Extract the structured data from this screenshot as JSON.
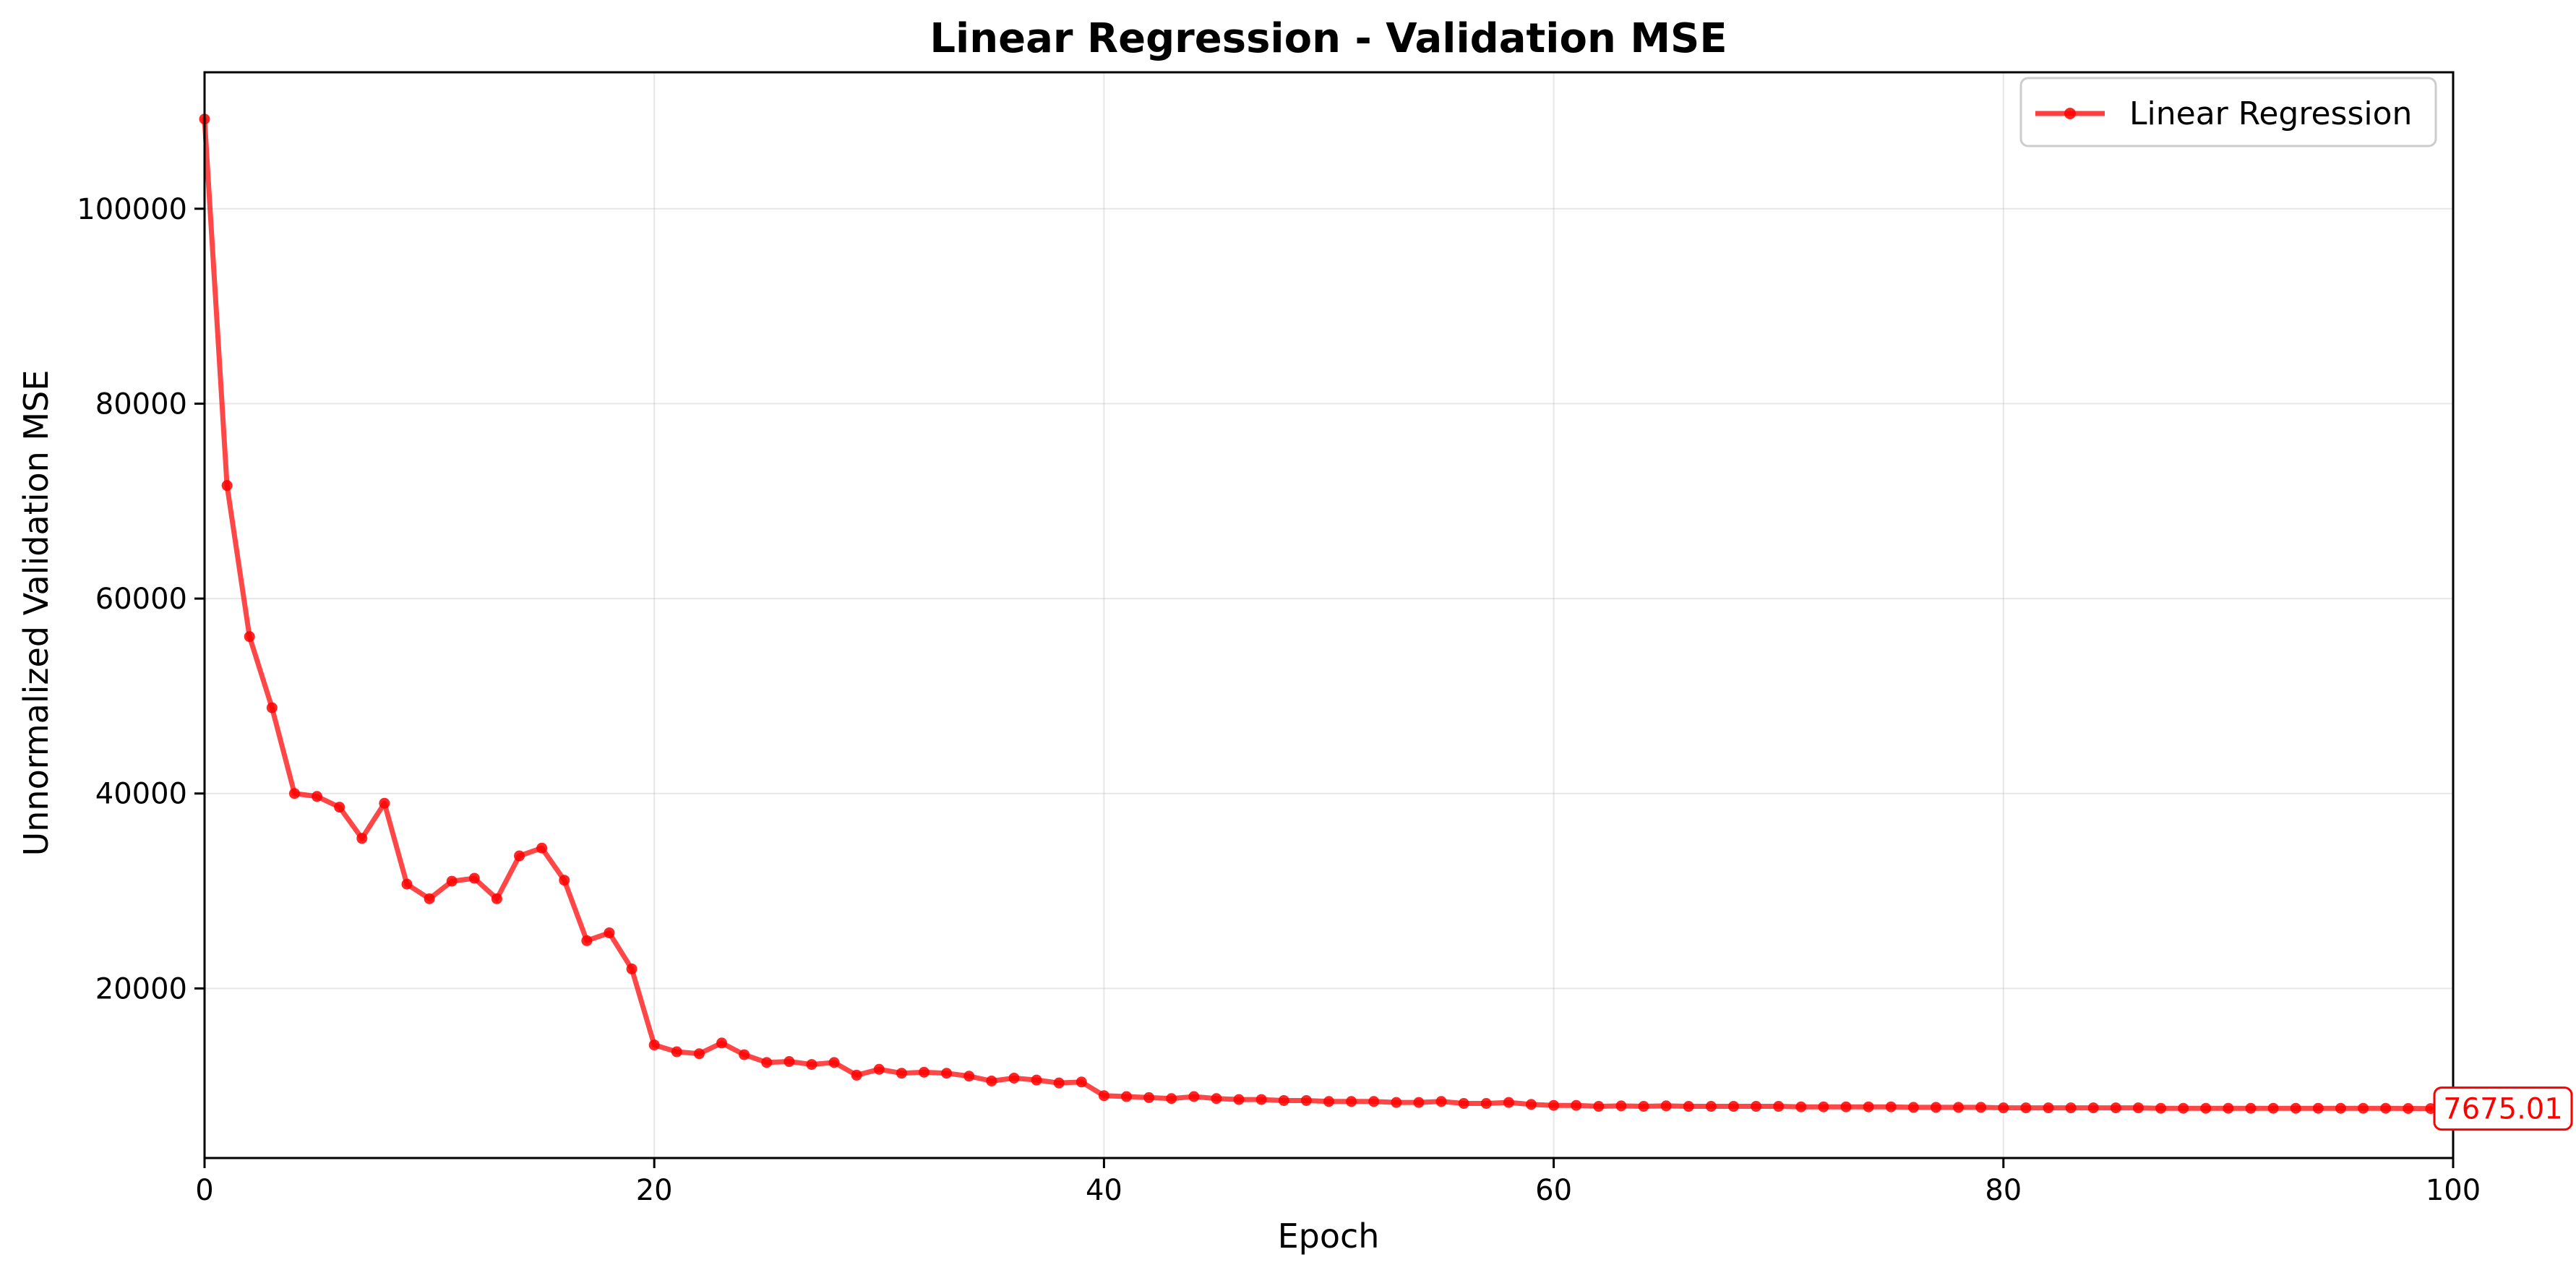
{
  "chart_data": {
    "type": "line",
    "title": "Linear Regression - Validation MSE",
    "xlabel": "Epoch",
    "ylabel": "Unnormalized Validation MSE",
    "xlim": [
      0,
      100
    ],
    "ylim": [
      2600,
      114000
    ],
    "xticks": [
      0,
      20,
      40,
      60,
      80,
      100
    ],
    "yticks": [
      20000,
      40000,
      60000,
      80000,
      100000
    ],
    "grid": true,
    "legend_position": "top-right",
    "color": "#ff0000",
    "series": [
      {
        "name": "Linear Regression",
        "x": [
          0,
          1,
          2,
          3,
          4,
          5,
          6,
          7,
          8,
          9,
          10,
          11,
          12,
          13,
          14,
          15,
          16,
          17,
          18,
          19,
          20,
          21,
          22,
          23,
          24,
          25,
          26,
          27,
          28,
          29,
          30,
          31,
          32,
          33,
          34,
          35,
          36,
          37,
          38,
          39,
          40,
          41,
          42,
          43,
          44,
          45,
          46,
          47,
          48,
          49,
          50,
          51,
          52,
          53,
          54,
          55,
          56,
          57,
          58,
          59,
          60,
          61,
          62,
          63,
          64,
          65,
          66,
          67,
          68,
          69,
          70,
          71,
          72,
          73,
          74,
          75,
          76,
          77,
          78,
          79,
          80,
          81,
          82,
          83,
          84,
          85,
          86,
          87,
          88,
          89,
          90,
          91,
          92,
          93,
          94,
          95,
          96,
          97,
          98,
          99
        ],
        "y": [
          109200,
          71600,
          56100,
          48800,
          40000,
          39700,
          38600,
          35400,
          39000,
          30700,
          29200,
          31000,
          31300,
          29200,
          33600,
          34400,
          31100,
          24900,
          25700,
          22000,
          14200,
          13500,
          13300,
          14400,
          13200,
          12400,
          12500,
          12200,
          12400,
          11100,
          11700,
          11300,
          11400,
          11300,
          11000,
          10500,
          10800,
          10600,
          10300,
          10400,
          9000,
          8900,
          8800,
          8700,
          8900,
          8700,
          8600,
          8600,
          8500,
          8500,
          8400,
          8400,
          8400,
          8300,
          8300,
          8400,
          8200,
          8200,
          8300,
          8100,
          8000,
          8000,
          7900,
          7950,
          7900,
          7950,
          7900,
          7900,
          7900,
          7900,
          7900,
          7850,
          7850,
          7850,
          7850,
          7850,
          7800,
          7800,
          7800,
          7800,
          7750,
          7750,
          7750,
          7750,
          7750,
          7750,
          7750,
          7700,
          7700,
          7700,
          7700,
          7700,
          7700,
          7700,
          7700,
          7700,
          7700,
          7700,
          7680,
          7675.01
        ]
      }
    ],
    "annotation": {
      "text": "7675.01",
      "x": 99,
      "y": 7675.01
    }
  }
}
